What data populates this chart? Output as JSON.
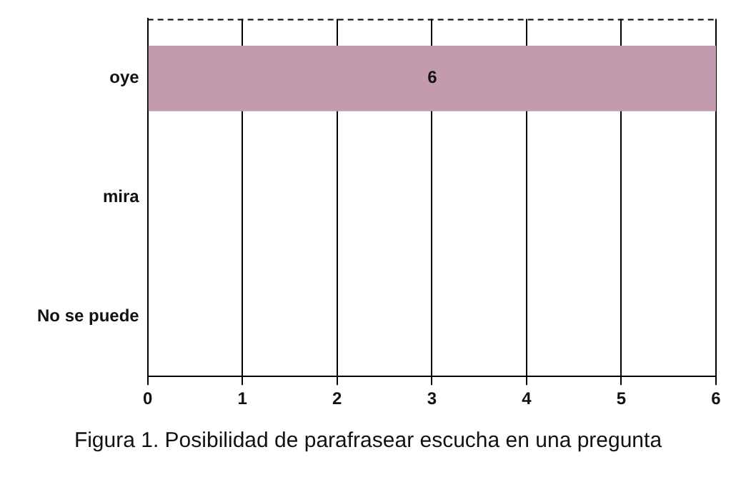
{
  "chart_data": {
    "type": "bar",
    "orientation": "horizontal",
    "title": "Figura 1. Posibilidad de parafrasear escucha en una pregunta",
    "categories": [
      "oye",
      "mira",
      "No se puede"
    ],
    "values": [
      6,
      0,
      0
    ],
    "color": "#c49aae",
    "value_labels": [
      "6",
      null,
      null
    ],
    "xlim": [
      0,
      6
    ],
    "xticks": [
      0,
      1,
      2,
      3,
      4,
      5,
      6
    ],
    "grid": "x",
    "legend": false
  }
}
